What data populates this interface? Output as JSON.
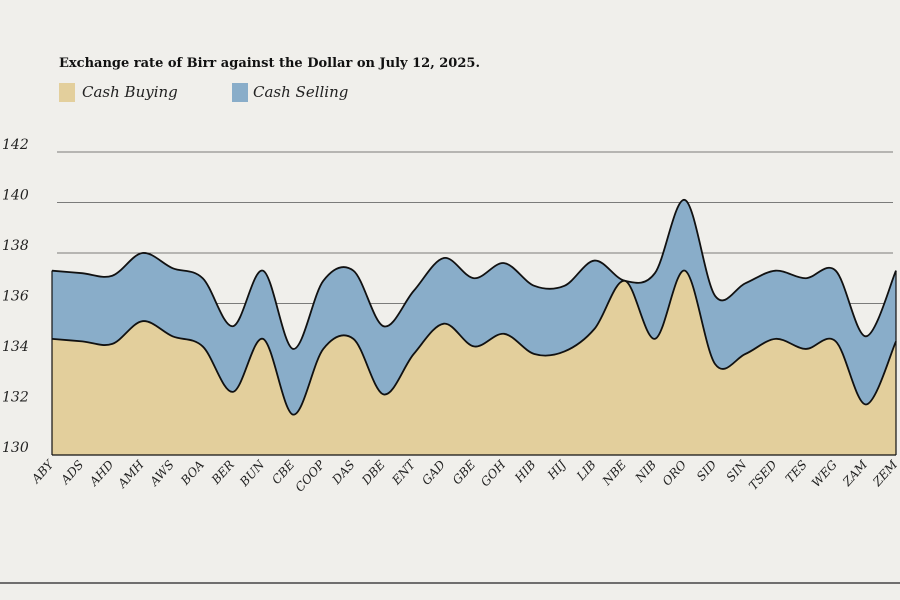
{
  "chart_data": {
    "type": "area",
    "title": "Exchange rate of Birr against the Dollar on July 12, 2025.",
    "xlabel": "",
    "ylabel": "",
    "ylim": [
      130,
      142
    ],
    "yticks": [
      130,
      132,
      134,
      136,
      138,
      140,
      142
    ],
    "grid": true,
    "legend_position": "top-left",
    "categories": [
      "ABY",
      "ADS",
      "AHD",
      "AMH",
      "AWS",
      "BOA",
      "BER",
      "BUN",
      "CBE",
      "COOP",
      "DAS",
      "DBE",
      "ENT",
      "GAD",
      "GBE",
      "GOH",
      "HIB",
      "HIJ",
      "LIB",
      "NBE",
      "NIB",
      "ORO",
      "SID",
      "SIN",
      "TSED",
      "TES",
      "WEG",
      "ZAM",
      "ZEM"
    ],
    "series": [
      {
        "name": "Cash Buying",
        "color": "#e3cf9c",
        "values": [
          134.6,
          134.5,
          134.4,
          135.3,
          134.7,
          134.3,
          132.5,
          134.6,
          131.6,
          134.2,
          134.6,
          132.4,
          134.0,
          135.2,
          134.3,
          134.8,
          134.0,
          134.1,
          135.0,
          136.9,
          134.6,
          137.3,
          133.6,
          134.0,
          134.6,
          134.2,
          134.5,
          132.0,
          134.5
        ]
      },
      {
        "name": "Cash Selling",
        "color": "#89adc9",
        "values": [
          137.3,
          137.2,
          137.1,
          138.0,
          137.4,
          137.0,
          135.1,
          137.3,
          134.2,
          136.9,
          137.3,
          135.1,
          136.5,
          137.8,
          137.0,
          137.6,
          136.7,
          136.7,
          137.7,
          136.9,
          137.2,
          140.1,
          136.3,
          136.8,
          137.3,
          137.0,
          137.3,
          134.7,
          137.3
        ]
      }
    ]
  }
}
